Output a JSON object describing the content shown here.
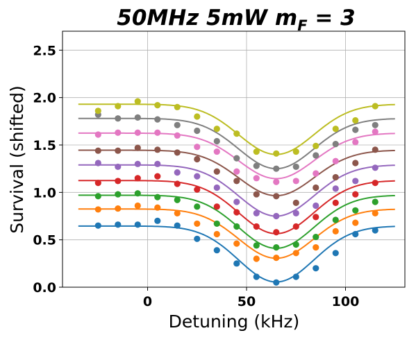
{
  "chart_data": {
    "type": "scatter",
    "title_parts": [
      "50MHz 5mW m",
      "F",
      " = 3"
    ],
    "xlabel": "Detuning (kHz)",
    "ylabel": "Survival (shifted)",
    "xlim": [
      -43,
      130
    ],
    "ylim": [
      0.0,
      2.7
    ],
    "xticks": [
      0,
      50,
      100
    ],
    "yticks": [
      0.0,
      0.5,
      1.0,
      1.5,
      2.0,
      2.5
    ],
    "ytick_labels": [
      "0.0",
      "0.5",
      "1.0",
      "1.5",
      "2.0",
      "2.5"
    ],
    "xtick_labels": [
      "0",
      "50",
      "100"
    ],
    "grid": true,
    "x": [
      -25,
      -15,
      -5,
      5,
      15,
      25,
      35,
      45,
      55,
      65,
      75,
      85,
      95,
      105,
      115
    ],
    "series": [
      {
        "color": "#1f77b4",
        "points": [
          0.65,
          0.66,
          0.66,
          0.7,
          0.65,
          0.51,
          0.39,
          0.25,
          0.11,
          0.05,
          0.11,
          0.2,
          0.36,
          0.56,
          0.6
        ],
        "fit": {
          "offset": 0.645,
          "amplitude": 0.59,
          "center": 65,
          "width": 19
        }
      },
      {
        "color": "#ff7f0e",
        "points": [
          0.82,
          0.83,
          0.86,
          0.84,
          0.78,
          0.67,
          0.56,
          0.46,
          0.3,
          0.31,
          0.36,
          0.42,
          0.59,
          0.68,
          0.78
        ],
        "fit": {
          "offset": 0.825,
          "amplitude": 0.52,
          "center": 65,
          "width": 19
        }
      },
      {
        "color": "#2ca02c",
        "points": [
          0.96,
          0.98,
          0.99,
          0.95,
          0.92,
          0.85,
          0.67,
          0.64,
          0.44,
          0.42,
          0.45,
          0.53,
          0.71,
          0.81,
          0.9
        ],
        "fit": {
          "offset": 0.97,
          "amplitude": 0.56,
          "center": 65,
          "width": 19
        }
      },
      {
        "color": "#d62728",
        "points": [
          1.1,
          1.12,
          1.15,
          1.17,
          1.09,
          1.03,
          0.85,
          0.79,
          0.64,
          0.58,
          0.64,
          0.74,
          0.89,
          0.98,
          1.1
        ],
        "fit": {
          "offset": 1.125,
          "amplitude": 0.56,
          "center": 65,
          "width": 19
        }
      },
      {
        "color": "#9467bd",
        "points": [
          1.31,
          1.27,
          1.3,
          1.3,
          1.21,
          1.17,
          1.05,
          0.9,
          0.78,
          0.75,
          0.78,
          0.86,
          1.04,
          1.12,
          1.26
        ],
        "fit": {
          "offset": 1.29,
          "amplitude": 0.54,
          "center": 65,
          "width": 19
        }
      },
      {
        "color": "#8c564b",
        "points": [
          1.44,
          1.44,
          1.47,
          1.45,
          1.42,
          1.35,
          1.22,
          1.12,
          0.98,
          0.96,
          0.89,
          1.05,
          1.16,
          1.31,
          1.45
        ],
        "fit": {
          "offset": 1.445,
          "amplitude": 0.48,
          "center": 65,
          "width": 19
        }
      },
      {
        "color": "#e377c2",
        "points": [
          1.61,
          1.63,
          1.63,
          1.63,
          1.6,
          1.48,
          1.43,
          1.22,
          1.15,
          1.11,
          1.12,
          1.2,
          1.33,
          1.53,
          1.64
        ],
        "fit": {
          "offset": 1.625,
          "amplitude": 0.48,
          "center": 65,
          "width": 19
        }
      },
      {
        "color": "#7f7f7f",
        "points": [
          1.82,
          1.78,
          1.79,
          1.77,
          1.71,
          1.65,
          1.54,
          1.36,
          1.28,
          1.25,
          1.27,
          1.39,
          1.51,
          1.66,
          1.71
        ],
        "fit": {
          "offset": 1.78,
          "amplitude": 0.53,
          "center": 65,
          "width": 19
        }
      },
      {
        "color": "#bcbd22",
        "points": [
          1.86,
          1.91,
          1.96,
          1.92,
          1.9,
          1.8,
          1.67,
          1.62,
          1.43,
          1.41,
          1.43,
          1.49,
          1.67,
          1.76,
          1.91
        ],
        "fit": {
          "offset": 1.93,
          "amplitude": 0.53,
          "center": 65,
          "width": 19
        }
      }
    ]
  }
}
